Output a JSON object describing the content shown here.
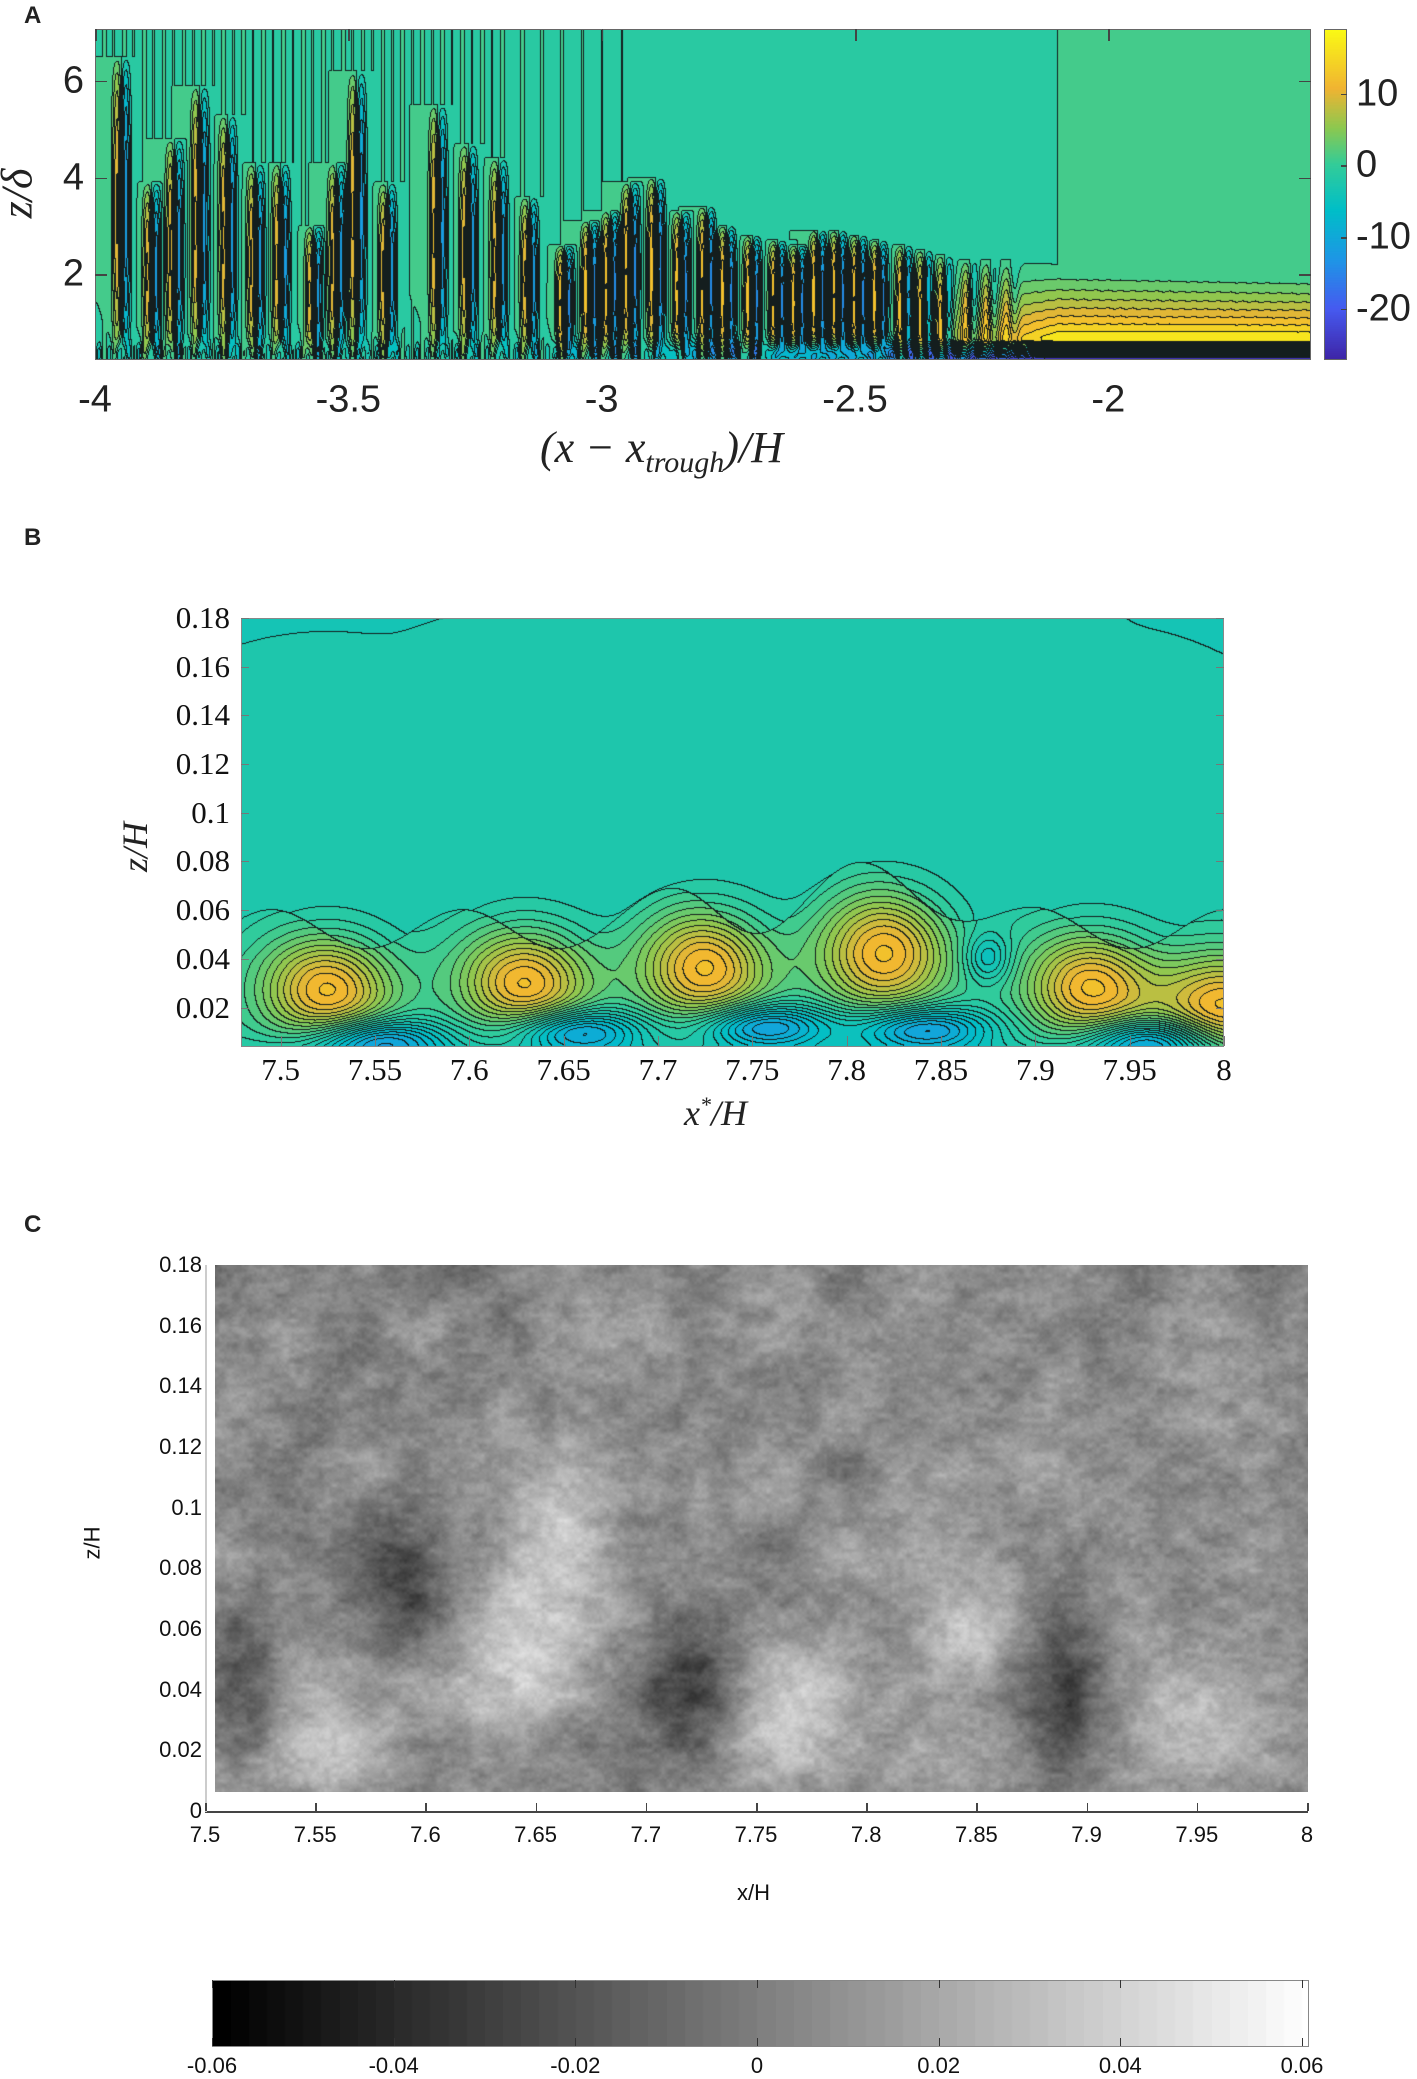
{
  "panels": {
    "a": {
      "label": "A"
    },
    "b": {
      "label": "B"
    },
    "c": {
      "label": "C"
    }
  },
  "chart_data": [
    {
      "type": "heatmap",
      "style": "filled contour",
      "panel": "A",
      "xlabel": "(x − x_trough)/H",
      "xlabel_parts": {
        "open": "(x − x",
        "sub": "trough",
        "close": ")/H"
      },
      "ylabel": "z/δ",
      "xlim": [
        -4,
        -1.6
      ],
      "ylim": [
        0.25,
        7.07
      ],
      "xticks": [
        -4,
        -3.5,
        -3,
        -2.5,
        -2
      ],
      "xtick_labels": [
        "-4",
        "-3.5",
        "-3",
        "-2.5",
        "-2"
      ],
      "yticks": [
        2,
        4,
        6
      ],
      "ytick_labels": [
        "2",
        "4",
        "6"
      ],
      "colormap": "parula",
      "colorbar": {
        "range": [
          -27,
          19
        ],
        "ticks": [
          10,
          0,
          -10,
          -20
        ],
        "tick_labels": [
          "10",
          "0",
          "-10",
          "-20"
        ],
        "placement": "right"
      },
      "background_value": 0,
      "streaks": [
        {
          "x": -3.955,
          "z_top": 6.5
        },
        {
          "x": -3.895,
          "z_top": 3.9
        },
        {
          "x": -3.85,
          "z_top": 4.8
        },
        {
          "x": -3.8,
          "z_top": 5.9
        },
        {
          "x": -3.745,
          "z_top": 5.3
        },
        {
          "x": -3.69,
          "z_top": 4.3
        },
        {
          "x": -3.64,
          "z_top": 4.3
        },
        {
          "x": -3.575,
          "z_top": 3.0
        },
        {
          "x": -3.53,
          "z_top": 4.3
        },
        {
          "x": -3.49,
          "z_top": 6.2
        },
        {
          "x": -3.43,
          "z_top": 3.9
        },
        {
          "x": -3.33,
          "z_top": 5.5
        },
        {
          "x": -3.27,
          "z_top": 4.7
        },
        {
          "x": -3.21,
          "z_top": 4.4
        },
        {
          "x": -3.15,
          "z_top": 3.6
        },
        {
          "x": -3.08,
          "z_top": 2.6
        },
        {
          "x": -3.03,
          "z_top": 3.1
        },
        {
          "x": -2.99,
          "z_top": 3.3
        },
        {
          "x": -2.95,
          "z_top": 3.9
        },
        {
          "x": -2.9,
          "z_top": 4.0
        },
        {
          "x": -2.85,
          "z_top": 3.3
        },
        {
          "x": -2.8,
          "z_top": 3.4
        },
        {
          "x": -2.76,
          "z_top": 3.0
        },
        {
          "x": -2.71,
          "z_top": 2.8
        },
        {
          "x": -2.66,
          "z_top": 2.7
        },
        {
          "x": -2.62,
          "z_top": 2.6
        },
        {
          "x": -2.58,
          "z_top": 2.9
        },
        {
          "x": -2.54,
          "z_top": 2.9
        },
        {
          "x": -2.5,
          "z_top": 2.8
        },
        {
          "x": -2.46,
          "z_top": 2.7
        },
        {
          "x": -2.41,
          "z_top": 2.6
        },
        {
          "x": -2.37,
          "z_top": 2.5
        },
        {
          "x": -2.33,
          "z_top": 2.4
        },
        {
          "x": -2.28,
          "z_top": 2.3
        },
        {
          "x": -2.24,
          "z_top": 2.3
        },
        {
          "x": -2.2,
          "z_top": 2.3
        }
      ],
      "near_wall_band": {
        "x_from": -2.3,
        "x_to": -1.6,
        "positive_z": [
          0.6,
          2.2
        ],
        "strong_negative_below_z": 0.6
      }
    },
    {
      "type": "heatmap",
      "style": "filled contour",
      "panel": "B",
      "xlabel": "x*/H",
      "xlabel_parts": {
        "main": "x",
        "sup": "*",
        "rest": "/H"
      },
      "ylabel": "z/H",
      "xlim": [
        7.479,
        8.0
      ],
      "ylim": [
        0.0042,
        0.18
      ],
      "xticks": [
        7.5,
        7.55,
        7.6,
        7.65,
        7.7,
        7.75,
        7.8,
        7.85,
        7.9,
        7.95,
        8
      ],
      "xtick_labels": [
        "7.5",
        "7.55",
        "7.6",
        "7.65",
        "7.7",
        "7.75",
        "7.8",
        "7.85",
        "7.9",
        "7.95",
        "8"
      ],
      "yticks": [
        0.02,
        0.04,
        0.06,
        0.08,
        0.1,
        0.12,
        0.14,
        0.16,
        0.18
      ],
      "ytick_labels": [
        "0.02",
        "0.04",
        "0.06",
        "0.08",
        "0.1",
        "0.12",
        "0.14",
        "0.16",
        "0.18"
      ],
      "colormap": "parula",
      "positive_cores": [
        {
          "x": 7.525,
          "z": 0.027
        },
        {
          "x": 7.63,
          "z": 0.03
        },
        {
          "x": 7.725,
          "z": 0.036
        },
        {
          "x": 7.82,
          "z": 0.042
        },
        {
          "x": 7.93,
          "z": 0.028
        },
        {
          "x": 8.0,
          "z": 0.02
        }
      ],
      "negative_cores": [
        {
          "x": 7.55,
          "z": 0.006
        },
        {
          "x": 7.655,
          "z": 0.01
        },
        {
          "x": 7.755,
          "z": 0.012
        },
        {
          "x": 7.84,
          "z": 0.011
        },
        {
          "x": 7.96,
          "z": 0.006
        }
      ]
    },
    {
      "type": "heatmap",
      "style": "grayscale image",
      "panel": "C",
      "xlabel": "x/H",
      "ylabel": "z/H",
      "xlim": [
        7.5,
        8
      ],
      "ylim": [
        0,
        0.18
      ],
      "xticks": [
        7.5,
        7.55,
        7.6,
        7.65,
        7.7,
        7.75,
        7.8,
        7.85,
        7.9,
        7.95,
        8
      ],
      "xtick_labels": [
        "7.5",
        "7.55",
        "7.6",
        "7.65",
        "7.7",
        "7.75",
        "7.8",
        "7.85",
        "7.9",
        "7.95",
        "8"
      ],
      "yticks": [
        0,
        0.02,
        0.04,
        0.06,
        0.08,
        0.1,
        0.12,
        0.14,
        0.16,
        0.18
      ],
      "ytick_labels": [
        "0",
        "0.02",
        "0.04",
        "0.06",
        "0.08",
        "0.1",
        "0.12",
        "0.14",
        "0.16",
        "0.18"
      ],
      "colormap": "gray",
      "colorbar": {
        "range": [
          -0.06,
          0.06
        ],
        "ticks": [
          -0.06,
          -0.04,
          -0.02,
          0,
          0.02,
          0.04,
          0.06
        ],
        "tick_labels": [
          "-0.06",
          "-0.04",
          "-0.02",
          "0",
          "0.02",
          "0.04",
          "0.06"
        ],
        "placement": "bottom"
      },
      "dark_regions": [
        {
          "x": 7.515,
          "z": 0.04
        },
        {
          "x": 7.72,
          "z": 0.042
        },
        {
          "x": 7.89,
          "z": 0.04
        },
        {
          "x": 7.59,
          "z": 0.08
        }
      ],
      "light_regions": [
        {
          "x": 7.555,
          "z": 0.03
        },
        {
          "x": 7.64,
          "z": 0.045
        },
        {
          "x": 7.76,
          "z": 0.035
        },
        {
          "x": 7.84,
          "z": 0.055
        },
        {
          "x": 7.95,
          "z": 0.03
        },
        {
          "x": 7.66,
          "z": 0.09
        }
      ]
    }
  ]
}
